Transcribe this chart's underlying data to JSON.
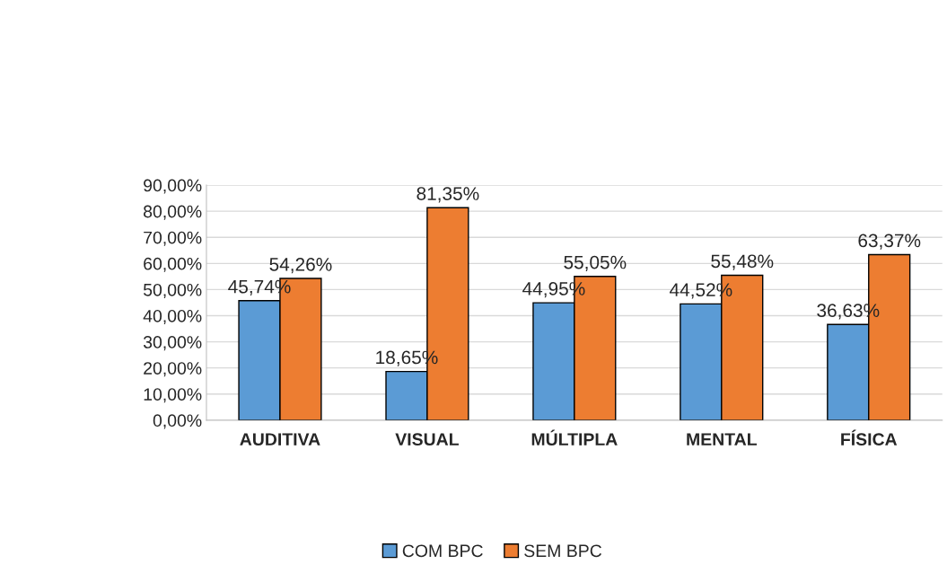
{
  "chart_data": {
    "type": "bar",
    "categories": [
      "AUDITIVA",
      "VISUAL",
      "MÚLTIPLA",
      "MENTAL",
      "FÍSICA"
    ],
    "series": [
      {
        "name": "COM BPC",
        "color": "#5b9bd5",
        "values": [
          45.74,
          18.65,
          44.95,
          44.52,
          36.63
        ],
        "value_labels": [
          "45,74%",
          "18,65%",
          "44,95%",
          "44,52%",
          "36,63%"
        ]
      },
      {
        "name": "SEM BPC",
        "color": "#ed7d31",
        "values": [
          54.26,
          81.35,
          55.05,
          55.48,
          63.37
        ],
        "value_labels": [
          "54,26%",
          "81,35%",
          "55,05%",
          "55,48%",
          "63,37%"
        ]
      }
    ],
    "ylim": [
      0,
      90
    ],
    "yticks": [
      {
        "value": 0,
        "label": "0,00%"
      },
      {
        "value": 10,
        "label": "10,00%"
      },
      {
        "value": 20,
        "label": "20,00%"
      },
      {
        "value": 30,
        "label": "30,00%"
      },
      {
        "value": 40,
        "label": "40,00%"
      },
      {
        "value": 50,
        "label": "50,00%"
      },
      {
        "value": 60,
        "label": "60,00%"
      },
      {
        "value": 70,
        "label": "70,00%"
      },
      {
        "value": 80,
        "label": "80,00%"
      },
      {
        "value": 90,
        "label": "90,00%"
      }
    ],
    "grid": "y",
    "legend": "bottom"
  }
}
